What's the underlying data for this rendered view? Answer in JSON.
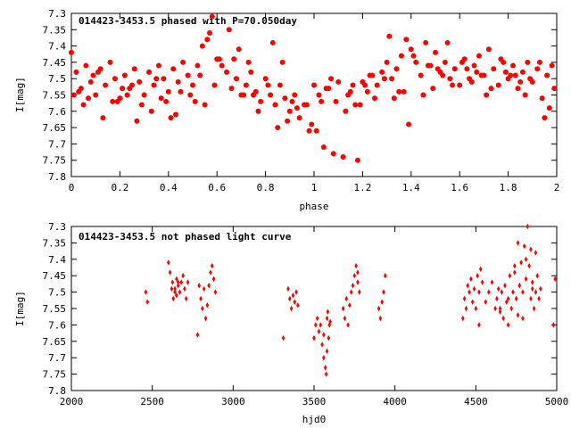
{
  "chart_data": [
    {
      "type": "scatter",
      "title": "014423-3453.5 phased with P=70.050day",
      "xlabel": "phase",
      "ylabel": "I[mag]",
      "xlim": [
        0,
        2
      ],
      "ylim": [
        7.8,
        7.3
      ],
      "y_reversed": true,
      "xticks": [
        "0",
        "0.2",
        "0.4",
        "0.6",
        "0.8",
        "1",
        "1.2",
        "1.4",
        "1.6",
        "1.8",
        "2"
      ],
      "yticks": [
        "7.3",
        "7.35",
        "7.4",
        "7.45",
        "7.5",
        "7.55",
        "7.6",
        "7.65",
        "7.7",
        "7.75",
        "7.8"
      ],
      "marker_color": "#ff0000",
      "grid": false,
      "series": [
        {
          "x": [
            0.0,
            0.02,
            0.04,
            0.06,
            0.08,
            0.1,
            0.12,
            0.14,
            0.16,
            0.18,
            0.2,
            0.22,
            0.24,
            0.26,
            0.28,
            0.3,
            0.32,
            0.34,
            0.36,
            0.38,
            0.4,
            0.42,
            0.44,
            0.46,
            0.48,
            0.5,
            0.52,
            0.54,
            0.56,
            0.58,
            0.6,
            0.62,
            0.64,
            0.66,
            0.68,
            0.7,
            0.72,
            0.74,
            0.76,
            0.78,
            0.8,
            0.82,
            0.84,
            0.86,
            0.88,
            0.9,
            0.92,
            0.94,
            0.96,
            0.98,
            1.0,
            1.02,
            1.04,
            1.06,
            1.08,
            1.1,
            1.12,
            1.14,
            1.16,
            1.18,
            1.2,
            1.22,
            1.24,
            1.26,
            1.28,
            1.3,
            1.32,
            1.34,
            1.36,
            1.38,
            1.4,
            1.42,
            1.44,
            1.46,
            1.48,
            1.5,
            1.52,
            1.54,
            1.56,
            1.58,
            1.6,
            1.62,
            1.64,
            1.66,
            1.68,
            1.7,
            1.72,
            1.74,
            1.76,
            1.78,
            1.8,
            1.82,
            1.84,
            1.86,
            1.88,
            1.9,
            1.92,
            1.94,
            1.96,
            1.98,
            0.01,
            0.05,
            0.09,
            0.13,
            0.17,
            0.21,
            0.25,
            0.29,
            0.33,
            0.37,
            0.41,
            0.45,
            0.49,
            0.53,
            0.57,
            0.61,
            0.65,
            0.69,
            0.73,
            0.77,
            0.81,
            0.85,
            0.89,
            0.93,
            0.97,
            1.01,
            1.05,
            1.09,
            1.13,
            1.17,
            1.21,
            1.25,
            1.29,
            1.33,
            1.37,
            1.41,
            1.45,
            1.49,
            1.53,
            1.57,
            1.61,
            1.65,
            1.69,
            1.73,
            1.77,
            1.81,
            1.85,
            1.89,
            1.93,
            1.97,
            0.03,
            0.11,
            0.19,
            0.27,
            0.35,
            0.43,
            0.51,
            0.59,
            0.67,
            0.75,
            0.83,
            0.91,
            0.99,
            1.07,
            1.15,
            1.23,
            1.31,
            1.39,
            1.47,
            1.55,
            1.63,
            1.71,
            1.79,
            1.87,
            1.95,
            0.07,
            0.23,
            0.39,
            0.55,
            0.71,
            0.87,
            1.03,
            1.19,
            1.35,
            1.51,
            1.67,
            1.83,
            1.99
          ],
          "y": [
            7.42,
            7.48,
            7.53,
            7.46,
            7.51,
            7.55,
            7.47,
            7.52,
            7.45,
            7.5,
            7.56,
            7.49,
            7.53,
            7.47,
            7.51,
            7.55,
            7.48,
            7.52,
            7.46,
            7.5,
            7.54,
            7.47,
            7.51,
            7.45,
            7.49,
            7.52,
            7.46,
            7.4,
            7.38,
            7.31,
            7.44,
            7.46,
            7.48,
            7.53,
            7.5,
            7.55,
            7.52,
            7.48,
            7.54,
            7.57,
            7.5,
            7.55,
            7.58,
            7.52,
            7.56,
            7.6,
            7.55,
            7.62,
            7.58,
            7.66,
            7.52,
            7.55,
            7.71,
            7.53,
            7.73,
            7.51,
            7.74,
            7.55,
            7.52,
            7.75,
            7.51,
            7.54,
            7.49,
            7.52,
            7.48,
            7.45,
            7.5,
            7.47,
            7.43,
            7.38,
            7.41,
            7.45,
            7.49,
            7.39,
            7.46,
            7.42,
            7.48,
            7.45,
            7.5,
            7.47,
            7.52,
            7.44,
            7.5,
            7.46,
            7.43,
            7.49,
            7.41,
            7.47,
            7.52,
            7.45,
            7.5,
            7.46,
            7.53,
            7.48,
            7.45,
            7.51,
            7.47,
            7.56,
            7.49,
            7.46,
            7.55,
            7.58,
            7.49,
            7.62,
            7.57,
            7.53,
            7.52,
            7.58,
            7.6,
            7.56,
            7.62,
            7.54,
            7.55,
            7.49,
            7.36,
            7.44,
            7.35,
            7.41,
            7.45,
            7.6,
            7.52,
            7.65,
            7.63,
            7.59,
            7.58,
            7.66,
            7.53,
            7.57,
            7.6,
            7.58,
            7.52,
            7.56,
            7.5,
            7.56,
            7.54,
            7.43,
            7.55,
            7.53,
            7.49,
            7.52,
            7.45,
            7.51,
            7.49,
            7.53,
            7.44,
            7.49,
            7.51,
            7.5,
            7.45,
            7.59,
            7.54,
            7.48,
            7.57,
            7.63,
            7.5,
            7.61,
            7.57,
            7.52,
            7.44,
            7.55,
            7.39,
            7.57,
            7.64,
            7.5,
            7.54,
            7.49,
            7.37,
            7.64,
            7.46,
            7.39,
            7.47,
            7.55,
            7.48,
            7.55,
            7.62,
            7.56,
            7.55,
            7.57,
            7.58,
            7.55,
            7.45,
            7.57,
            7.58,
            7.54,
            7.47,
            7.48,
            7.49,
            7.53
          ]
        }
      ]
    },
    {
      "type": "scatter",
      "title": "014423-3453.5 not phased light curve",
      "xlabel": "hjd0",
      "ylabel": "I[mag]",
      "xlim": [
        2000,
        5000
      ],
      "ylim": [
        7.8,
        7.3
      ],
      "y_reversed": true,
      "xticks": [
        "2000",
        "2500",
        "3000",
        "3500",
        "4000",
        "4500",
        "5000"
      ],
      "yticks": [
        "7.3",
        "7.35",
        "7.4",
        "7.45",
        "7.5",
        "7.55",
        "7.6",
        "7.65",
        "7.7",
        "7.75",
        "7.8"
      ],
      "marker_color": "#ff0000",
      "grid": false,
      "series": [
        {
          "x": [
            2460,
            2470,
            2600,
            2610,
            2620,
            2625,
            2630,
            2640,
            2650,
            2660,
            2670,
            2680,
            2690,
            2700,
            2710,
            2720,
            2780,
            2790,
            2800,
            2810,
            2820,
            2830,
            2840,
            2850,
            2860,
            2870,
            2880,
            2890,
            3310,
            3340,
            3350,
            3360,
            3370,
            3380,
            3390,
            3400,
            3500,
            3510,
            3520,
            3530,
            3540,
            3550,
            3560,
            3570,
            3575,
            3580,
            3585,
            3590,
            3595,
            3600,
            3680,
            3690,
            3700,
            3710,
            3720,
            3730,
            3740,
            3750,
            3760,
            3770,
            3780,
            3900,
            3910,
            3920,
            3930,
            3940,
            4420,
            4430,
            4440,
            4450,
            4460,
            4470,
            4480,
            4490,
            4500,
            4510,
            4520,
            4530,
            4540,
            4620,
            4630,
            4640,
            4650,
            4660,
            4670,
            4680,
            4690,
            4700,
            4710,
            4720,
            4730,
            4740,
            4750,
            4760,
            4770,
            4780,
            4790,
            4800,
            4810,
            4820,
            4830,
            4840,
            4850,
            4860,
            4870,
            4880,
            4890,
            4900,
            4980,
            4990
          ],
          "y": [
            7.5,
            7.53,
            7.41,
            7.44,
            7.49,
            7.47,
            7.52,
            7.5,
            7.46,
            7.48,
            7.5,
            7.47,
            7.45,
            7.49,
            7.52,
            7.47,
            7.63,
            7.48,
            7.52,
            7.55,
            7.49,
            7.58,
            7.54,
            7.48,
            7.44,
            7.42,
            7.46,
            7.5,
            7.64,
            7.49,
            7.52,
            7.55,
            7.51,
            7.53,
            7.5,
            7.54,
            7.64,
            7.6,
            7.58,
            7.62,
            7.6,
            7.66,
            7.7,
            7.73,
            7.75,
            7.68,
            7.56,
            7.64,
            7.6,
            7.59,
            7.55,
            7.58,
            7.52,
            7.6,
            7.54,
            7.5,
            7.48,
            7.45,
            7.42,
            7.47,
            7.5,
            7.55,
            7.58,
            7.53,
            7.5,
            7.45,
            7.58,
            7.52,
            7.55,
            7.48,
            7.5,
            7.46,
            7.53,
            7.49,
            7.55,
            7.45,
            7.5,
            7.43,
            7.47,
            7.55,
            7.52,
            7.49,
            7.56,
            7.5,
            7.58,
            7.48,
            7.53,
            7.6,
            7.45,
            7.55,
            7.5,
            7.44,
            7.52,
            7.57,
            7.48,
            7.41,
            7.5,
            7.36,
            7.46,
            7.3,
            7.42,
            7.52,
            7.49,
            7.55,
            7.38,
            7.45,
            7.52,
            7.49,
            7.6,
            7.46
          ],
          "x_extra": [
            4740,
            4760,
            4790,
            4810,
            4840,
            4850,
            4870,
            4520,
            4560,
            4580,
            4600,
            4650,
            4700,
            3560,
            3580,
            3770,
            2640,
            2650,
            2660
          ],
          "y_extra": [
            7.42,
            7.35,
            7.58,
            7.4,
            7.37,
            7.47,
            7.5,
            7.6,
            7.53,
            7.5,
            7.47,
            7.55,
            7.52,
            7.63,
            7.58,
            7.44,
            7.49,
            7.51,
            7.47
          ]
        }
      ]
    }
  ]
}
